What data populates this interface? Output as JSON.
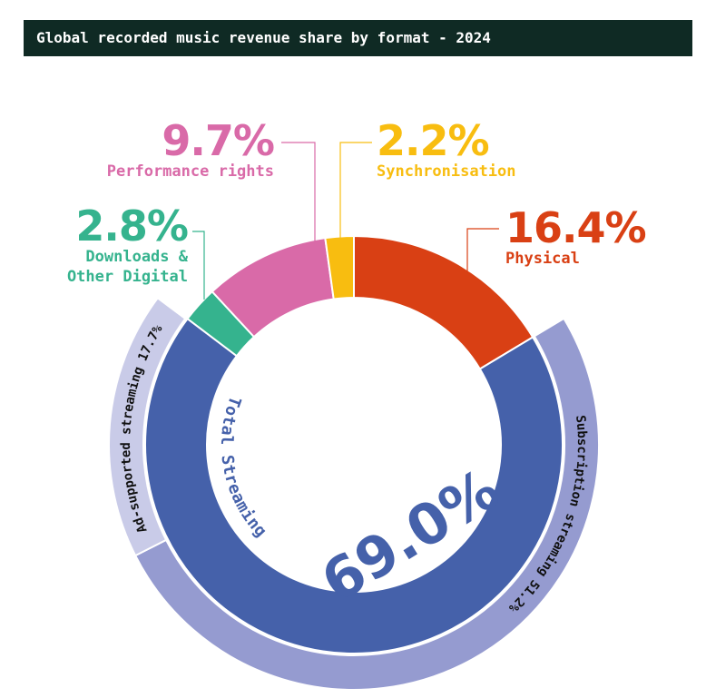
{
  "chart_data": {
    "type": "donut",
    "title": "Global recorded music revenue share by format - 2024",
    "categories": [
      "Physical",
      "Total Streaming",
      "Downloads & Other Digital",
      "Performance rights",
      "Synchronisation"
    ],
    "values": [
      16.4,
      69.0,
      2.8,
      9.7,
      2.2
    ],
    "value_labels": [
      "16.4%",
      "69.0%",
      "2.8%",
      "9.7%",
      "2.2%"
    ],
    "colors": [
      "#d94014",
      "#4561aa",
      "#35b38e",
      "#d96aa8",
      "#f8bd10"
    ],
    "outer_ring": {
      "categories": [
        "Subscription streaming",
        "Ad-supported streaming"
      ],
      "values": [
        51.2,
        17.7
      ],
      "value_labels": [
        "51.2%",
        "17.7%"
      ],
      "colors": [
        "#959bd0",
        "#c9cbe8"
      ]
    }
  }
}
